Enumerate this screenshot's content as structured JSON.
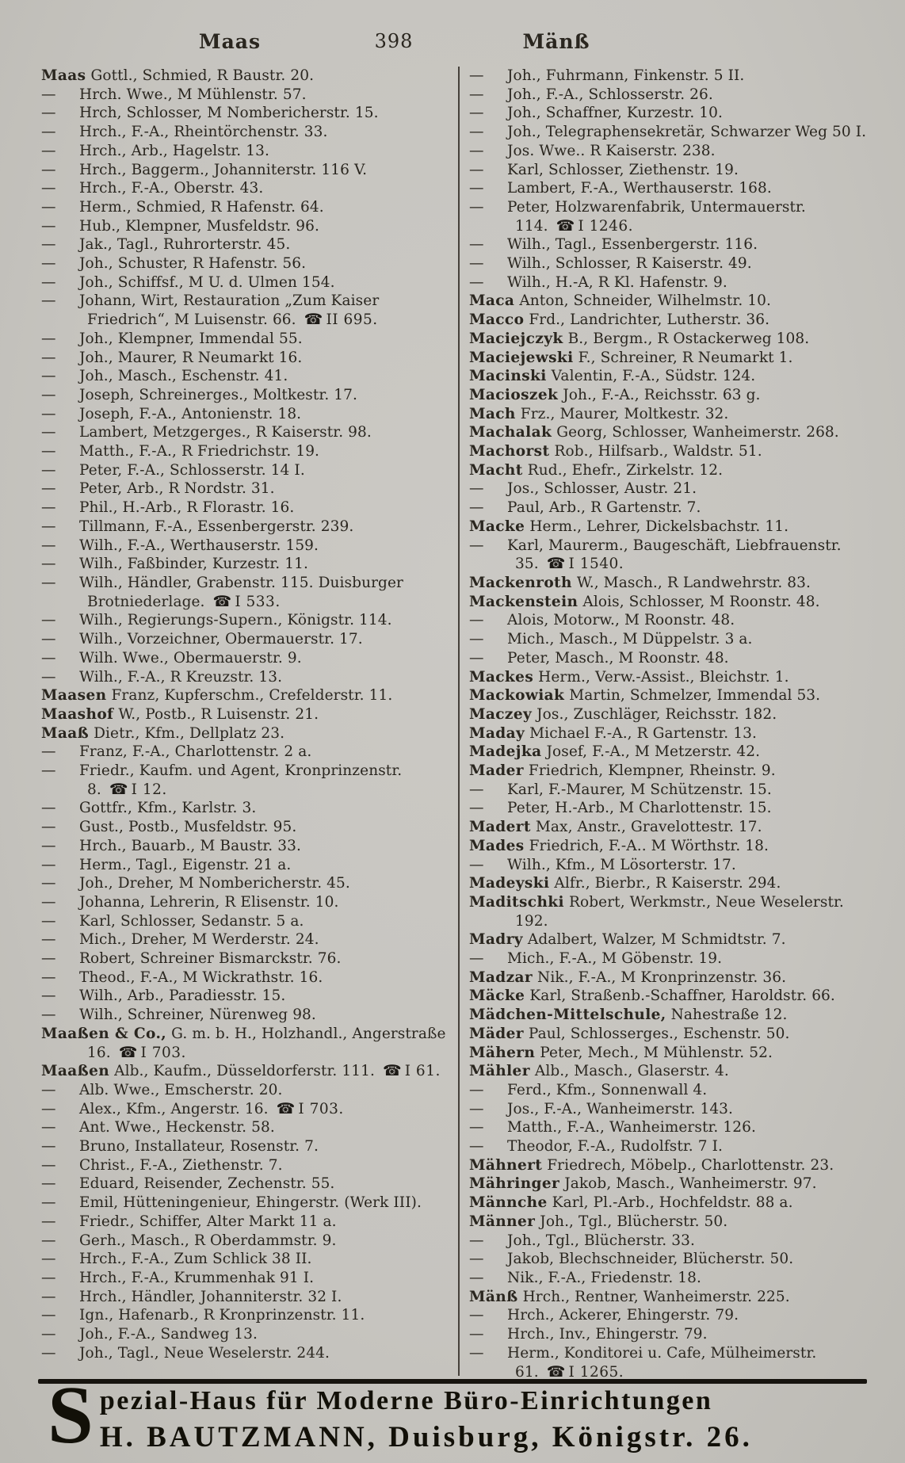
{
  "header": {
    "left_keyword": "Maas",
    "page_number": "398",
    "right_keyword": "Mänß"
  },
  "phone_icon_glyph": "☎",
  "directory": {
    "left_column": [
      {
        "name": "Maas",
        "text": "Gottl., Schmied, R Baustr. 20."
      },
      {
        "dash": true,
        "text": "Hrch. Wwe., M Mühlenstr. 57."
      },
      {
        "dash": true,
        "text": "Hrch, Schlosser, M Nombericherstr. 15."
      },
      {
        "dash": true,
        "text": "Hrch., F.-A., Rheintörchenstr. 33."
      },
      {
        "dash": true,
        "text": "Hrch., Arb., Hagelstr. 13."
      },
      {
        "dash": true,
        "text": "Hrch., Baggerm., Johanniterstr. 116 V."
      },
      {
        "dash": true,
        "text": "Hrch., F.-A., Oberstr. 43."
      },
      {
        "dash": true,
        "text": "Herm., Schmied, R Hafenstr. 64."
      },
      {
        "dash": true,
        "text": "Hub., Klempner, Musfeldstr. 96."
      },
      {
        "dash": true,
        "text": "Jak., Tagl., Ruhrorterstr. 45."
      },
      {
        "dash": true,
        "text": "Joh., Schuster, R Hafenstr. 56."
      },
      {
        "dash": true,
        "text": "Joh., Schiffsf., M U. d. Ulmen 154."
      },
      {
        "dash": true,
        "text": "Johann, Wirt, Restauration „Zum Kaiser Friedrich“, M Luisenstr. 66.",
        "phone": "II 695."
      },
      {
        "dash": true,
        "text": "Joh., Klempner, Immendal 55."
      },
      {
        "dash": true,
        "text": "Joh., Maurer, R Neumarkt 16."
      },
      {
        "dash": true,
        "text": "Joh., Masch., Eschenstr. 41."
      },
      {
        "dash": true,
        "text": "Joseph, Schreinerges., Moltkestr. 17."
      },
      {
        "dash": true,
        "text": "Joseph, F.-A., Antonienstr. 18."
      },
      {
        "dash": true,
        "text": "Lambert, Metzgerges., R Kaiserstr. 98."
      },
      {
        "dash": true,
        "text": "Matth., F.-A., R Friedrichstr. 19."
      },
      {
        "dash": true,
        "text": "Peter, F.-A., Schlosserstr. 14 I."
      },
      {
        "dash": true,
        "text": "Peter, Arb., R Nordstr. 31."
      },
      {
        "dash": true,
        "text": "Phil., H.-Arb., R Florastr. 16."
      },
      {
        "dash": true,
        "text": "Tillmann, F.-A., Essenbergerstr. 239."
      },
      {
        "dash": true,
        "text": "Wilh., F.-A., Werthauserstr. 159."
      },
      {
        "dash": true,
        "text": "Wilh., Faßbinder, Kurzestr. 11."
      },
      {
        "dash": true,
        "text": "Wilh., Händler, Grabenstr. 115. Duisburger Brotniederlage.",
        "phone": "I 533."
      },
      {
        "dash": true,
        "text": "Wilh., Regierungs-Supern., Königstr. 114."
      },
      {
        "dash": true,
        "text": "Wilh., Vorzeichner, Obermauerstr. 17."
      },
      {
        "dash": true,
        "text": "Wilh. Wwe., Obermauerstr. 9."
      },
      {
        "dash": true,
        "text": "Wilh., F.-A., R Kreuzstr. 13."
      },
      {
        "name": "Maasen",
        "text": "Franz, Kupferschm., Crefelderstr. 11."
      },
      {
        "name": "Maashof",
        "text": "W., Postb., R Luisenstr. 21."
      },
      {
        "name": "Maaß",
        "text": "Dietr., Kfm., Dellplatz 23."
      },
      {
        "dash": true,
        "text": "Franz, F.-A., Charlottenstr. 2 a."
      },
      {
        "dash": true,
        "text": "Friedr., Kaufm. und Agent, Kronprinzenstr. 8.",
        "phone": "I 12."
      },
      {
        "dash": true,
        "text": "Gottfr., Kfm., Karlstr. 3."
      },
      {
        "dash": true,
        "text": "Gust., Postb., Musfeldstr. 95."
      },
      {
        "dash": true,
        "text": "Hrch., Bauarb., M Baustr. 33."
      },
      {
        "dash": true,
        "text": "Herm., Tagl., Eigenstr. 21 a."
      },
      {
        "dash": true,
        "text": "Joh., Dreher, M Nombericherstr. 45."
      },
      {
        "dash": true,
        "text": "Johanna, Lehrerin, R Elisenstr. 10."
      },
      {
        "dash": true,
        "text": "Karl, Schlosser, Sedanstr. 5 a."
      },
      {
        "dash": true,
        "text": "Mich., Dreher, M Werderstr. 24."
      },
      {
        "dash": true,
        "text": "Robert, Schreiner Bismarckstr. 76."
      },
      {
        "dash": true,
        "text": "Theod., F.-A., M Wickrathstr. 16."
      },
      {
        "dash": true,
        "text": "Wilh., Arb., Paradiesstr. 15."
      },
      {
        "dash": true,
        "text": "Wilh., Schreiner, Nürenweg 98."
      },
      {
        "name": "Maaßen & Co.,",
        "text": "G. m. b. H., Holzhandl., Angerstraße 16.",
        "phone": "I 703."
      },
      {
        "name": "Maaßen",
        "text": "Alb., Kaufm., Düsseldorferstr. 111.",
        "phone": "I 61."
      },
      {
        "dash": true,
        "text": "Alb. Wwe., Emscherstr. 20."
      },
      {
        "dash": true,
        "text": "Alex., Kfm., Angerstr. 16.",
        "phone": "I 703."
      },
      {
        "dash": true,
        "text": "Ant. Wwe., Heckenstr. 58."
      },
      {
        "dash": true,
        "text": "Bruno, Installateur, Rosenstr. 7."
      },
      {
        "dash": true,
        "text": "Christ., F.-A., Ziethenstr. 7."
      },
      {
        "dash": true,
        "text": "Eduard, Reisender, Zechenstr. 55."
      },
      {
        "dash": true,
        "text": "Emil, Hütteningenieur, Ehingerstr. (Werk III)."
      },
      {
        "dash": true,
        "text": "Friedr., Schiffer, Alter Markt 11 a."
      },
      {
        "dash": true,
        "text": "Gerh., Masch., R Oberdammstr. 9."
      },
      {
        "dash": true,
        "text": "Hrch., F.-A., Zum Schlick 38 II."
      },
      {
        "dash": true,
        "text": "Hrch., F.-A., Krummenhak 91 I."
      },
      {
        "dash": true,
        "text": "Hrch., Händler, Johanniterstr. 32 I."
      },
      {
        "dash": true,
        "text": "Ign., Hafenarb., R Kronprinzenstr. 11."
      },
      {
        "dash": true,
        "text": "Joh., F.-A., Sandweg 13."
      },
      {
        "dash": true,
        "text": "Joh., Tagl., Neue Weselerstr. 244."
      }
    ],
    "right_column": [
      {
        "dash": true,
        "text": "Joh., Fuhrmann, Finkenstr. 5 II."
      },
      {
        "dash": true,
        "text": "Joh., F.-A., Schlosserstr. 26."
      },
      {
        "dash": true,
        "text": "Joh., Schaffner, Kurzestr. 10."
      },
      {
        "dash": true,
        "text": "Joh., Telegraphensekretär, Schwarzer Weg 50 I."
      },
      {
        "dash": true,
        "text": "Jos. Wwe.. R Kaiserstr. 238."
      },
      {
        "dash": true,
        "text": "Karl, Schlosser, Ziethenstr. 19."
      },
      {
        "dash": true,
        "text": "Lambert, F.-A., Werthauserstr. 168."
      },
      {
        "dash": true,
        "text": "Peter, Holzwarenfabrik, Untermauerstr. 114.",
        "phone": "I 1246."
      },
      {
        "dash": true,
        "text": "Wilh., Tagl., Essenbergerstr. 116."
      },
      {
        "dash": true,
        "text": "Wilh., Schlosser, R Kaiserstr. 49."
      },
      {
        "dash": true,
        "text": "Wilh., H.-A, R Kl. Hafenstr. 9."
      },
      {
        "name": "Maca",
        "text": "Anton, Schneider, Wilhelmstr. 10."
      },
      {
        "name": "Macco",
        "text": "Frd., Landrichter, Lutherstr. 36."
      },
      {
        "name": "Maciejczyk",
        "text": "B., Bergm., R Ostackerweg 108."
      },
      {
        "name": "Maciejewski",
        "text": "F., Schreiner, R Neumarkt 1."
      },
      {
        "name": "Macinski",
        "text": "Valentin, F.-A., Südstr. 124."
      },
      {
        "name": "Macioszek",
        "text": "Joh., F.-A., Reichsstr. 63 g."
      },
      {
        "name": "Mach",
        "text": "Frz., Maurer, Moltkestr. 32."
      },
      {
        "name": "Machalak",
        "text": "Georg, Schlosser, Wanheimerstr. 268."
      },
      {
        "name": "Machorst",
        "text": "Rob., Hilfsarb., Waldstr. 51."
      },
      {
        "name": "Macht",
        "text": "Rud., Ehefr., Zirkelstr. 12."
      },
      {
        "dash": true,
        "text": "Jos., Schlosser, Austr. 21."
      },
      {
        "dash": true,
        "text": "Paul, Arb., R Gartenstr. 7."
      },
      {
        "name": "Macke",
        "text": "Herm., Lehrer, Dickelsbachstr. 11."
      },
      {
        "dash": true,
        "text": "Karl, Maurerm., Baugeschäft, Liebfrauenstr. 35.",
        "phone": "I 1540."
      },
      {
        "name": "Mackenroth",
        "text": "W., Masch., R Landwehrstr. 83."
      },
      {
        "name": "Mackenstein",
        "text": "Alois, Schlosser, M Roonstr. 48."
      },
      {
        "dash": true,
        "text": "Alois, Motorw., M Roonstr. 48."
      },
      {
        "dash": true,
        "text": "Mich., Masch., M Düppelstr. 3 a."
      },
      {
        "dash": true,
        "text": "Peter, Masch., M Roonstr. 48."
      },
      {
        "name": "Mackes",
        "text": "Herm., Verw.-Assist., Bleichstr. 1."
      },
      {
        "name": "Mackowiak",
        "text": "Martin, Schmelzer, Immendal 53."
      },
      {
        "name": "Maczey",
        "text": "Jos., Zuschläger, Reichsstr. 182."
      },
      {
        "name": "Maday",
        "text": "Michael F.-A., R Gartenstr. 13."
      },
      {
        "name": "Madejka",
        "text": "Josef, F.-A., M Metzerstr. 42."
      },
      {
        "name": "Mader",
        "text": "Friedrich, Klempner, Rheinstr. 9."
      },
      {
        "dash": true,
        "text": "Karl, F.-Maurer, M Schützenstr. 15."
      },
      {
        "dash": true,
        "text": "Peter, H.-Arb., M Charlottenstr. 15."
      },
      {
        "name": "Madert",
        "text": "Max, Anstr., Gravelottestr. 17."
      },
      {
        "name": "Mades",
        "text": "Friedrich, F.-A.. M Wörthstr. 18."
      },
      {
        "dash": true,
        "text": "Wilh., Kfm., M Lösorterstr. 17."
      },
      {
        "name": "Madeyski",
        "text": "Alfr., Bierbr., R Kaiserstr. 294."
      },
      {
        "name": "Maditschki",
        "text": "Robert, Werkmstr., Neue Weselerstr. 192."
      },
      {
        "name": "Madry",
        "text": "Adalbert, Walzer, M Schmidtstr. 7."
      },
      {
        "dash": true,
        "text": "Mich., F.-A., M Göbenstr. 19."
      },
      {
        "name": "Madzar",
        "text": "Nik., F.-A., M Kronprinzenstr. 36."
      },
      {
        "name": "Mäcke",
        "text": "Karl, Straßenb.-Schaffner, Haroldstr. 66."
      },
      {
        "name": "Mädchen-Mittelschule,",
        "text": "Nahestraße 12."
      },
      {
        "name": "Mäder",
        "text": "Paul, Schlosserges., Eschenstr. 50."
      },
      {
        "name": "Mähern",
        "text": "Peter, Mech., M Mühlenstr. 52."
      },
      {
        "name": "Mähler",
        "text": "Alb., Masch., Glaserstr. 4."
      },
      {
        "dash": true,
        "text": "Ferd., Kfm., Sonnenwall 4."
      },
      {
        "dash": true,
        "text": "Jos., F.-A., Wanheimerstr. 143."
      },
      {
        "dash": true,
        "text": "Matth., F.-A., Wanheimerstr. 126."
      },
      {
        "dash": true,
        "text": "Theodor, F.-A., Rudolfstr. 7 I."
      },
      {
        "name": "Mähnert",
        "text": "Friedrech, Möbelp., Charlottenstr. 23."
      },
      {
        "name": "Mähringer",
        "text": "Jakob, Masch., Wanheimerstr. 97."
      },
      {
        "name": "Männche",
        "text": "Karl, Pl.-Arb., Hochfeldstr. 88 a."
      },
      {
        "name": "Männer",
        "text": "Joh., Tgl., Blücherstr. 50."
      },
      {
        "dash": true,
        "text": "Joh., Tgl., Blücherstr. 33."
      },
      {
        "dash": true,
        "text": "Jakob, Blechschneider, Blücherstr. 50."
      },
      {
        "dash": true,
        "text": "Nik., F.-A., Friedenstr. 18."
      },
      {
        "name": "Mänß",
        "text": "Hrch., Rentner, Wanheimerstr. 225."
      },
      {
        "dash": true,
        "text": "Hrch., Ackerer, Ehingerstr. 79."
      },
      {
        "dash": true,
        "text": "Hrch., Inv., Ehingerstr. 79."
      },
      {
        "dash": true,
        "text": "Herm., Konditorei u. Cafe, Mülheimerstr. 61.",
        "phone": "I 1265."
      }
    ]
  },
  "banner": {
    "drop_cap": "S",
    "line1": "pezial-Haus für Moderne Büro-Einrichtungen",
    "line2": "H. BAUTZMANN, Duisburg, Königstr. 26."
  }
}
